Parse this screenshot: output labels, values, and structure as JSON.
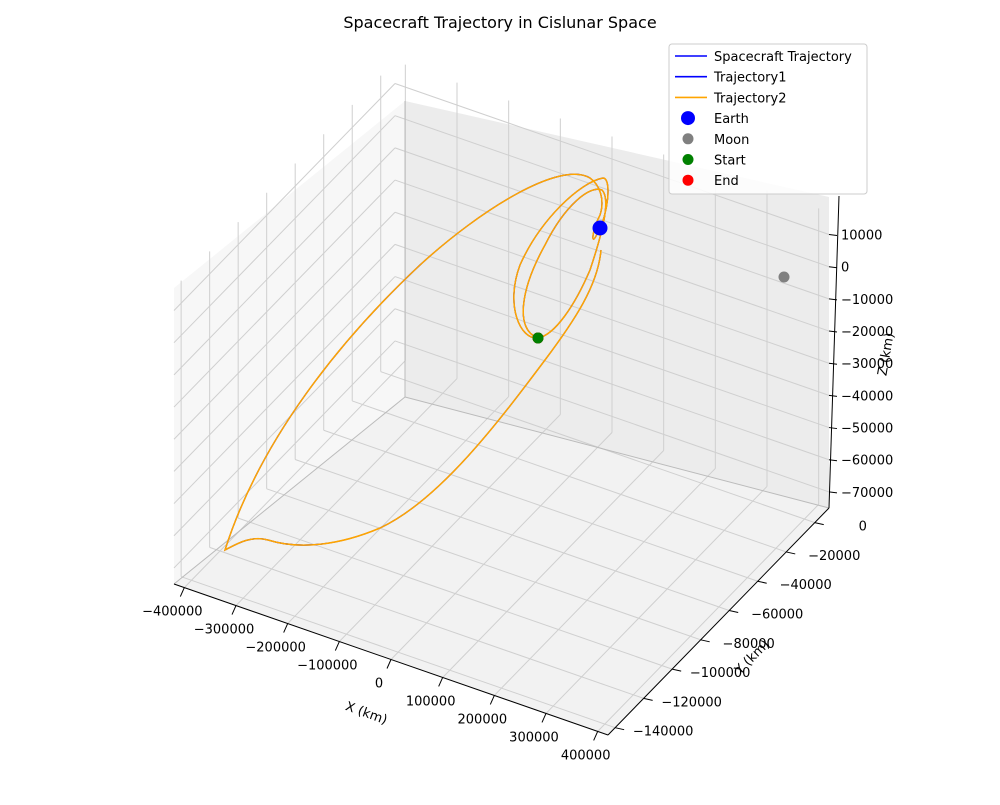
{
  "chart_data": {
    "type": "line",
    "title": "Spacecraft Trajectory in Cislunar Space",
    "xlabel": "X (km)",
    "ylabel": "Y (km)",
    "zlabel": "Z (km)",
    "grid": true,
    "legend_position": "top-right",
    "x_ticks": [
      "−400000",
      "−300000",
      "−200000",
      "−100000",
      "0",
      "100000",
      "200000",
      "300000",
      "400000"
    ],
    "y_ticks": [
      "−140000",
      "−120000",
      "−100000",
      "−80000",
      "−60000",
      "−40000",
      "−20000",
      "0"
    ],
    "z_ticks": [
      "−70000",
      "−60000",
      "−50000",
      "−40000",
      "−30000",
      "−20000",
      "−10000",
      "0",
      "10000"
    ],
    "xlim": [
      -420000,
      420000
    ],
    "ylim": [
      -145000,
      10000
    ],
    "zlim": [
      -75000,
      17000
    ],
    "series": [
      {
        "name": "Spacecraft Trajectory",
        "color": "#0000ff",
        "kind": "line"
      },
      {
        "name": "Trajectory1",
        "color": "#0000ff",
        "kind": "line"
      },
      {
        "name": "Trajectory2",
        "color": "#ffa500",
        "kind": "line"
      },
      {
        "name": "Earth",
        "color": "#0000ff",
        "kind": "marker",
        "point": [
          0,
          0,
          0
        ]
      },
      {
        "name": "Moon",
        "color": "#808080",
        "kind": "marker",
        "point": [
          384400,
          0,
          0
        ]
      },
      {
        "name": "Start",
        "color": "#008000",
        "kind": "marker",
        "point": [
          -42000,
          0,
          0
        ]
      },
      {
        "name": "End",
        "color": "#ff0000",
        "kind": "marker",
        "point": [
          -42000,
          0,
          0
        ]
      }
    ]
  }
}
